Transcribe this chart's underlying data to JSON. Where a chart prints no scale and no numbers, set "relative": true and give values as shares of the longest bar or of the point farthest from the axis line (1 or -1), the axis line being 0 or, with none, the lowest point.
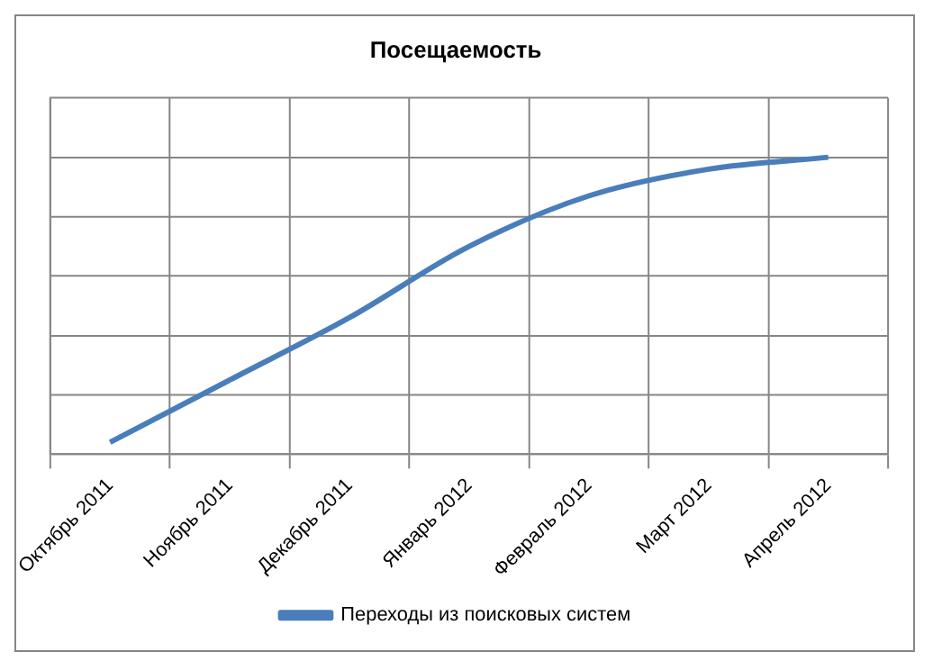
{
  "chart_data": {
    "type": "line",
    "title": "Посещаемость",
    "relative": true,
    "grid": true,
    "legend": "bottom",
    "marker": "none",
    "categories": [
      "Октябрь 2011",
      "Ноябрь 2011",
      "Декабрь 2011",
      "Январь 2012",
      "Февраль 2012",
      "Март 2012",
      "Апрель 2012"
    ],
    "series": [
      {
        "name": "Переходы из поисковых систем",
        "color": "#4a7ebb",
        "values": [
          0.04,
          0.25,
          0.46,
          0.7,
          0.87,
          0.96,
          1
        ]
      }
    ]
  }
}
